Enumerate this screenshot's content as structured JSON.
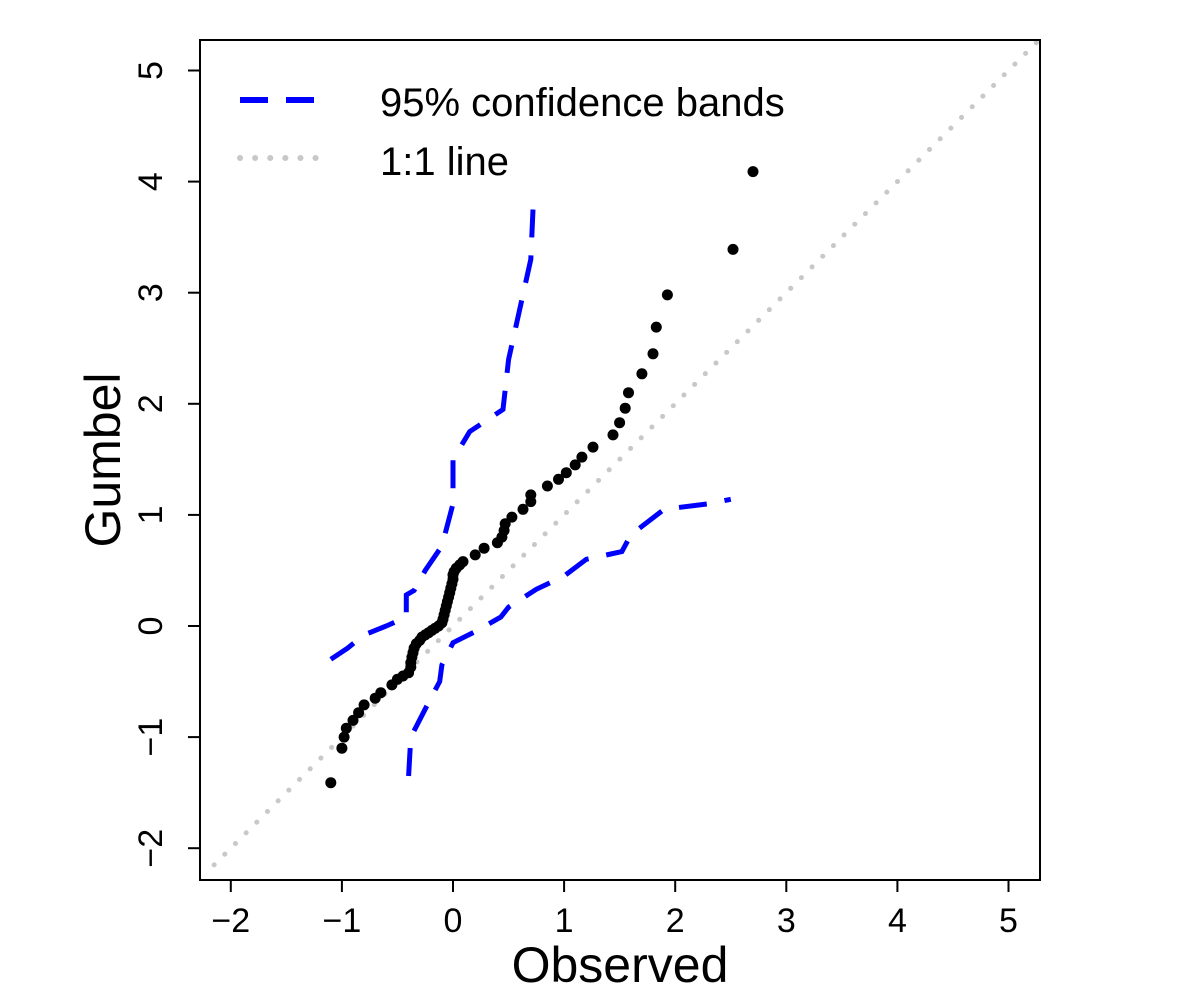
{
  "chart_data": {
    "type": "scatter",
    "xlabel": "Observed",
    "ylabel": "Gumbel",
    "xlim": [
      -2.2,
      5.3
    ],
    "ylim": [
      -2.3,
      5.2
    ],
    "x_ticks": [
      -2,
      -1,
      0,
      1,
      2,
      3,
      4,
      5
    ],
    "y_ticks": [
      -2,
      -1,
      0,
      1,
      2,
      3,
      4,
      5
    ],
    "x_tick_labels": [
      "−2",
      "−1",
      "0",
      "1",
      "2",
      "3",
      "4",
      "5"
    ],
    "y_tick_labels": [
      "−2",
      "−1",
      "0",
      "1",
      "2",
      "3",
      "4",
      "5"
    ],
    "grid": false,
    "legend": {
      "position": "top-left",
      "entries": [
        {
          "label": "95% confidence bands",
          "style": "dashed",
          "color": "#0000ff"
        },
        {
          "label": "1:1 line",
          "style": "dotted",
          "color": "#c8c8c8"
        }
      ]
    },
    "series": [
      {
        "style": "points",
        "color": "#000000",
        "points": [
          [
            -1.1,
            -1.41
          ],
          [
            -1.0,
            -1.1
          ],
          [
            -0.98,
            -1.0
          ],
          [
            -0.96,
            -0.92
          ],
          [
            -0.9,
            -0.85
          ],
          [
            -0.85,
            -0.78
          ],
          [
            -0.8,
            -0.71
          ],
          [
            -0.7,
            -0.65
          ],
          [
            -0.65,
            -0.6
          ],
          [
            -0.55,
            -0.53
          ],
          [
            -0.5,
            -0.48
          ],
          [
            -0.45,
            -0.45
          ],
          [
            -0.4,
            -0.42
          ],
          [
            -0.38,
            -0.37
          ],
          [
            -0.38,
            -0.33
          ],
          [
            -0.37,
            -0.28
          ],
          [
            -0.36,
            -0.24
          ],
          [
            -0.35,
            -0.2
          ],
          [
            -0.33,
            -0.16
          ],
          [
            -0.3,
            -0.13
          ],
          [
            -0.28,
            -0.1
          ],
          [
            -0.25,
            -0.08
          ],
          [
            -0.22,
            -0.06
          ],
          [
            -0.19,
            -0.04
          ],
          [
            -0.16,
            -0.02
          ],
          [
            -0.13,
            0.0
          ],
          [
            -0.1,
            0.03
          ],
          [
            -0.09,
            0.06
          ],
          [
            -0.08,
            0.1
          ],
          [
            -0.07,
            0.14
          ],
          [
            -0.06,
            0.18
          ],
          [
            -0.05,
            0.22
          ],
          [
            -0.04,
            0.26
          ],
          [
            -0.03,
            0.3
          ],
          [
            -0.02,
            0.34
          ],
          [
            -0.01,
            0.38
          ],
          [
            0.0,
            0.42
          ],
          [
            0.0,
            0.46
          ],
          [
            0.01,
            0.49
          ],
          [
            0.03,
            0.52
          ],
          [
            0.06,
            0.55
          ],
          [
            0.09,
            0.58
          ],
          [
            0.2,
            0.64
          ],
          [
            0.28,
            0.7
          ],
          [
            0.4,
            0.75
          ],
          [
            0.44,
            0.8
          ],
          [
            0.46,
            0.86
          ],
          [
            0.47,
            0.92
          ],
          [
            0.53,
            0.98
          ],
          [
            0.63,
            1.05
          ],
          [
            0.7,
            1.12
          ],
          [
            0.7,
            1.18
          ],
          [
            0.85,
            1.26
          ],
          [
            0.95,
            1.32
          ],
          [
            1.02,
            1.38
          ],
          [
            1.1,
            1.45
          ],
          [
            1.16,
            1.52
          ],
          [
            1.26,
            1.61
          ],
          [
            1.44,
            1.72
          ],
          [
            1.5,
            1.83
          ],
          [
            1.55,
            1.96
          ],
          [
            1.58,
            2.1
          ],
          [
            1.7,
            2.27
          ],
          [
            1.8,
            2.45
          ],
          [
            1.83,
            2.69
          ],
          [
            1.93,
            2.98
          ],
          [
            2.52,
            3.39
          ],
          [
            2.7,
            4.09
          ]
        ]
      },
      {
        "style": "dashed",
        "color": "#0000ff",
        "points": [
          [
            -1.1,
            -0.3
          ],
          [
            -0.95,
            -0.2
          ],
          [
            -0.8,
            -0.08
          ],
          [
            -0.6,
            0.0
          ],
          [
            -0.42,
            0.08
          ],
          [
            -0.42,
            0.28
          ],
          [
            -0.35,
            0.32
          ],
          [
            -0.25,
            0.5
          ],
          [
            -0.1,
            0.72
          ],
          [
            0.0,
            1.1
          ],
          [
            0.0,
            1.5
          ],
          [
            0.15,
            1.75
          ],
          [
            0.45,
            1.95
          ],
          [
            0.5,
            2.4
          ],
          [
            0.6,
            2.85
          ],
          [
            0.7,
            3.3
          ],
          [
            0.72,
            3.75
          ]
        ]
      },
      {
        "style": "dashed",
        "color": "#0000ff",
        "points": [
          [
            -0.4,
            -1.35
          ],
          [
            -0.38,
            -1.0
          ],
          [
            -0.2,
            -0.65
          ],
          [
            -0.12,
            -0.5
          ],
          [
            -0.1,
            -0.35
          ],
          [
            0.0,
            -0.15
          ],
          [
            0.2,
            -0.05
          ],
          [
            0.43,
            0.08
          ],
          [
            0.5,
            0.17
          ],
          [
            0.75,
            0.33
          ],
          [
            1.0,
            0.45
          ],
          [
            1.2,
            0.6
          ],
          [
            1.52,
            0.67
          ],
          [
            1.6,
            0.82
          ],
          [
            1.9,
            1.05
          ],
          [
            2.3,
            1.1
          ],
          [
            2.5,
            1.14
          ]
        ]
      },
      {
        "style": "dotted",
        "color": "#c8c8c8",
        "points": [
          [
            -2.15,
            -2.15
          ],
          [
            5.25,
            5.25
          ]
        ]
      }
    ]
  }
}
